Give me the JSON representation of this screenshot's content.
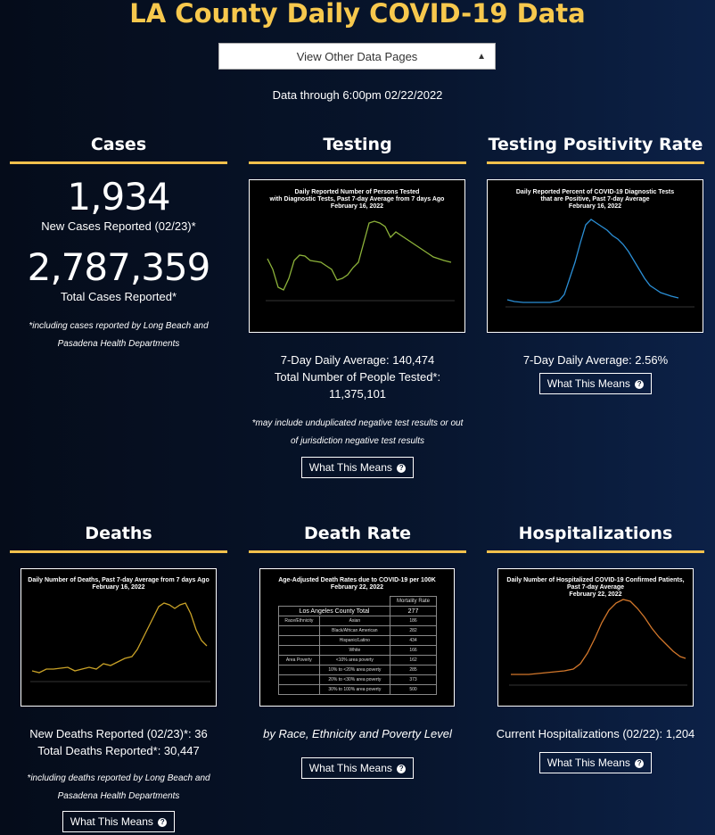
{
  "title": "LA County Daily COVID-19 Data",
  "selector": {
    "value": "View Other Data Pages"
  },
  "data_through": "Data through 6:00pm 02/22/2022",
  "cases": {
    "title": "Cases",
    "new_cases": "1,934",
    "new_cases_label": "New Cases Reported (02/23)*",
    "total_cases": "2,787,359",
    "total_cases_label": "Total Cases Reported*",
    "note": "*including cases reported by Long Beach and Pasadena Health Departments"
  },
  "testing": {
    "title": "Testing",
    "chart_title_1": "Daily Reported Number of Persons Tested",
    "chart_title_2": "with Diagnostic Tests, Past 7-day Average from 7 days Ago",
    "chart_title_3": "February 16, 2022",
    "avg_line": "7-Day Daily Average: 140,474",
    "total_line_1": "Total Number of People Tested*:",
    "total_line_2": "11,375,101",
    "note": "*may include unduplicated negative test results or out of jurisdiction negative test results",
    "button": "What This Means"
  },
  "positivity": {
    "title": "Testing Positivity Rate",
    "chart_title_1": "Daily Reported Percent of COVID-19 Diagnostic Tests",
    "chart_title_2": "that are Positive, Past 7-day Average",
    "chart_title_3": "February 16, 2022",
    "avg_line": "7-Day Daily Average: 2.56%",
    "button": "What This Means"
  },
  "deaths": {
    "title": "Deaths",
    "chart_title_1": "Daily Number of Deaths, Past 7-day Average from 7 days Ago",
    "chart_title_2": "February 16, 2022",
    "new_line": "New Deaths Reported (02/23)*: 36",
    "total_line": "Total Deaths Reported*: 30,447",
    "note": "*including deaths reported by Long Beach and Pasadena Health Departments",
    "button": "What This Means"
  },
  "death_rate": {
    "title": "Death Rate",
    "chart_title_1": "Age-Adjusted Death Rates due to COVID-19 per 100K",
    "chart_title_2": "February 22, 2022",
    "header": "Mortality Rate",
    "total_label": "Los Angeles County Total",
    "total_value": "277",
    "rows": [
      {
        "group": "Race/Ethnicity",
        "label": "Asian",
        "value": "186"
      },
      {
        "group": "",
        "label": "Black/African American",
        "value": "282"
      },
      {
        "group": "",
        "label": "Hispanic/Latino",
        "value": "434"
      },
      {
        "group": "",
        "label": "White",
        "value": "166"
      },
      {
        "group": "Area Poverty",
        "label": "<10% area poverty",
        "value": "162"
      },
      {
        "group": "",
        "label": "10% to <20% area poverty",
        "value": "285"
      },
      {
        "group": "",
        "label": "20% to <30% area poverty",
        "value": "373"
      },
      {
        "group": "",
        "label": "30% to 100% area poverty",
        "value": "500"
      }
    ],
    "caption": "by Race, Ethnicity and Poverty Level",
    "button": "What This Means"
  },
  "hospitalizations": {
    "title": "Hospitalizations",
    "chart_title_1": "Daily Number of Hospitalized COVID-19 Confirmed Patients,",
    "chart_title_2": "Past 7-day Average",
    "chart_title_3": "February 22, 2022",
    "current_line": "Current Hospitalizations (02/22): 1,204",
    "button": "What This Means"
  },
  "colors": {
    "accent": "#f7c84d",
    "testing_line": "#8db33a",
    "positivity_line": "#2b8fd6",
    "deaths_line": "#c9a227",
    "hosp_line": "#d2772b"
  }
}
